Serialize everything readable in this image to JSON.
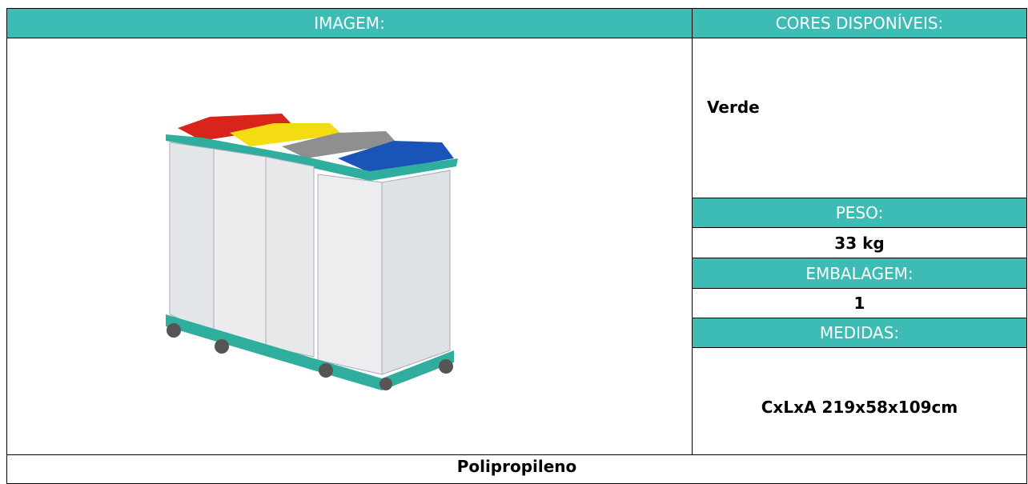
{
  "table": {
    "headers": [
      "IMAGEM:",
      "CORES DISPONÍVEIS:"
    ],
    "cores": "Verde",
    "peso": {
      "label": "PESO:",
      "value": "33 kg"
    },
    "embalagem": {
      "label": "EMBALAGEM:",
      "value": "1"
    },
    "medidas": {
      "label": "MEDIDAS:",
      "value": "CxLxA 219x58x109cm"
    },
    "material": "Polipropileno"
  }
}
